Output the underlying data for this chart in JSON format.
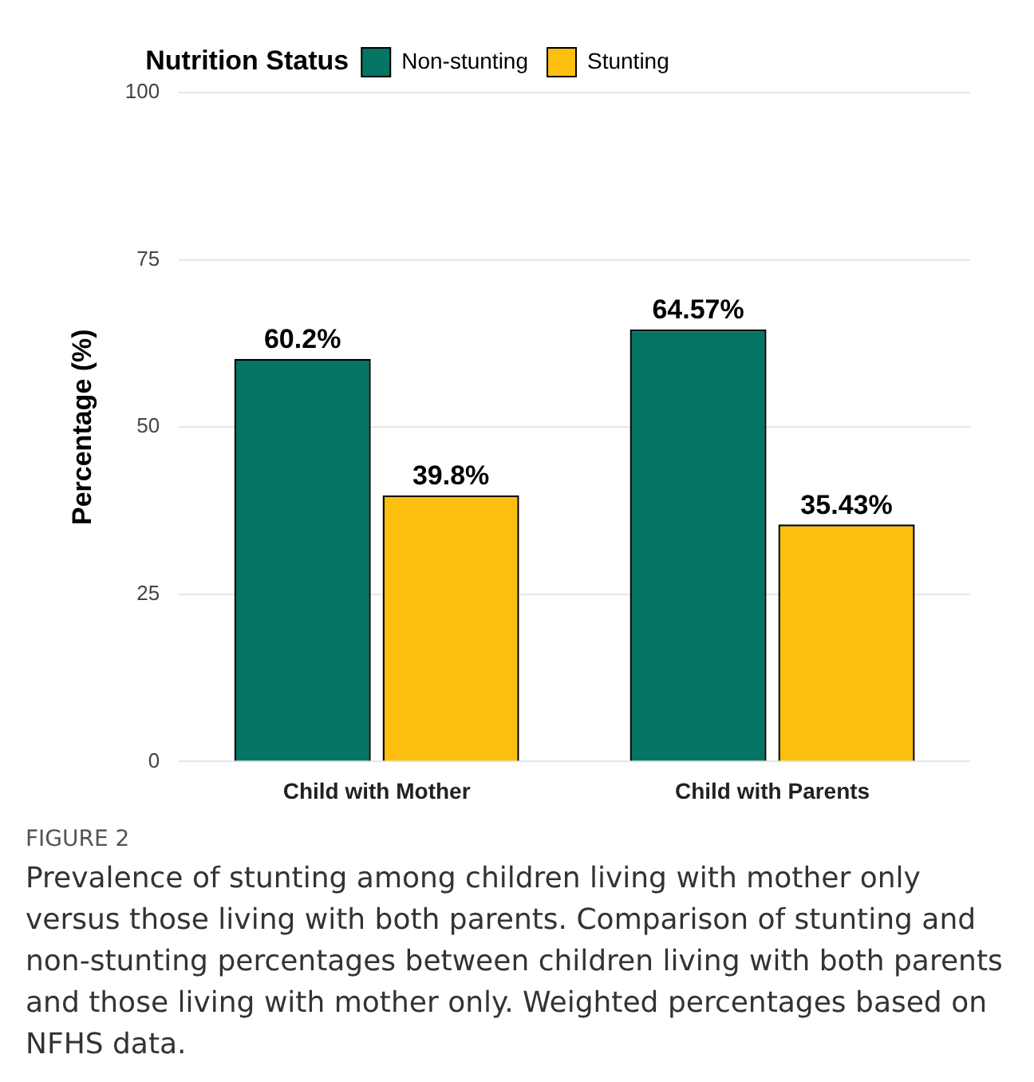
{
  "chart_data": {
    "type": "bar",
    "ylabel": "Percentage (%)",
    "legend_title": "Nutrition Status",
    "categories": [
      "Child with Mother",
      "Child with Parents"
    ],
    "series": [
      {
        "name": "Non-stunting",
        "color": "#047564",
        "values": [
          60.2,
          64.57
        ],
        "value_labels": [
          "60.2%",
          "64.57%"
        ]
      },
      {
        "name": "Stunting",
        "color": "#fcbf0f",
        "values": [
          39.8,
          35.43
        ],
        "value_labels": [
          "39.8%",
          "35.43%"
        ]
      }
    ],
    "ylim": [
      0,
      100
    ],
    "yticks": [
      0,
      25,
      50,
      75,
      100
    ],
    "grid": "y",
    "legend": "top",
    "annotations": [
      "FIGURE 2",
      "Prevalence of stunting among children living with mother only versus those living with both parents. Comparison of stunting and non-stunting percentages between children living with both parents and those living with mother only. Weighted percentages based on NFHS data."
    ]
  }
}
